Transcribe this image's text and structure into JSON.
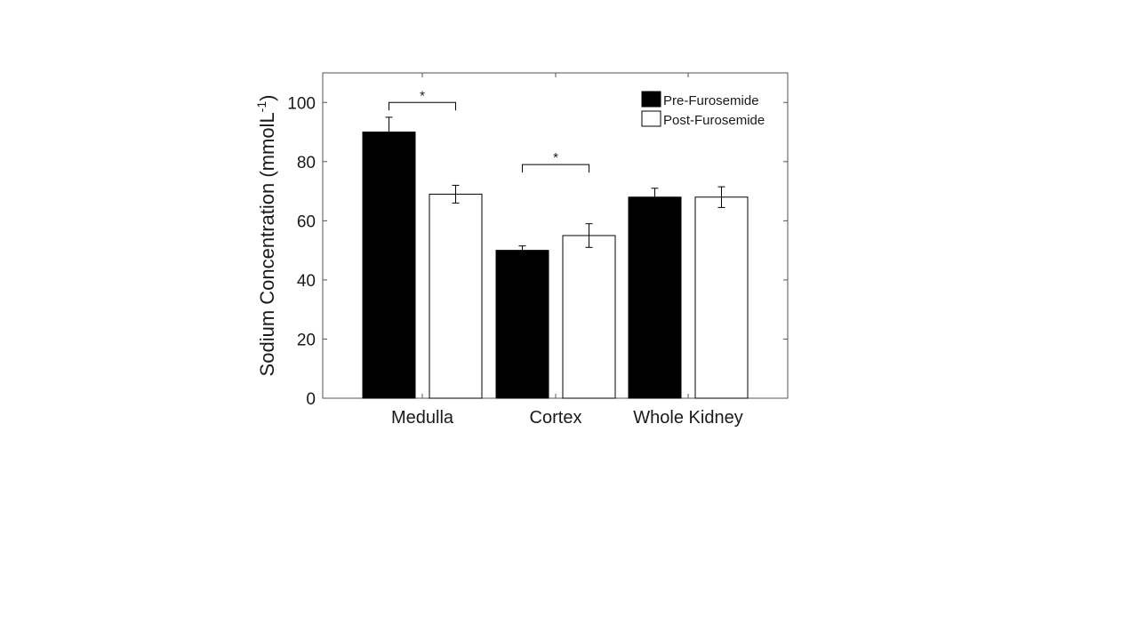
{
  "chart_data": {
    "type": "bar",
    "categories": [
      "Medulla",
      "Cortex",
      "Whole Kidney"
    ],
    "series": [
      {
        "name": "Pre-Furosemide",
        "values": [
          90,
          50,
          68
        ],
        "errors": [
          5,
          1.5,
          3
        ],
        "color": "#000000"
      },
      {
        "name": "Post-Furosemide",
        "values": [
          69,
          55,
          68
        ],
        "errors": [
          3,
          4,
          3.5
        ],
        "color": "#ffffff"
      }
    ],
    "ylabel_main": "Sodium Concentration (mmolL",
    "ylabel_sup": "-1",
    "ylabel_close": ")",
    "ylim": [
      0,
      110
    ],
    "yticks": [
      "0",
      "20",
      "40",
      "60",
      "80",
      "100"
    ],
    "legend_position": "top-right",
    "grid": false,
    "annotations": [
      {
        "text": "*",
        "category": "Medulla",
        "y": 100
      },
      {
        "text": "*",
        "category": "Cortex",
        "y": 79
      }
    ]
  }
}
